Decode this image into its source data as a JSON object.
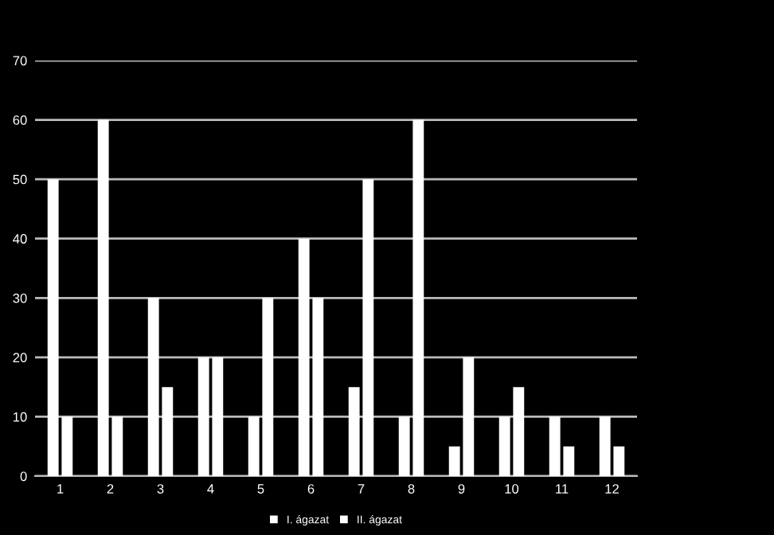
{
  "chart_data": {
    "type": "bar",
    "categories": [
      "1",
      "2",
      "3",
      "4",
      "5",
      "6",
      "7",
      "8",
      "9",
      "10",
      "11",
      "12"
    ],
    "series": [
      {
        "name": "I. ágazat",
        "color": "#ffffff",
        "values": [
          50,
          60,
          30,
          20,
          10,
          40,
          15,
          10,
          5,
          10,
          10,
          10
        ]
      },
      {
        "name": "II. ágazat",
        "color": "#ffffff",
        "values": [
          10,
          10,
          15,
          20,
          30,
          30,
          50,
          60,
          20,
          15,
          5,
          5
        ]
      }
    ],
    "ylim": [
      0,
      70
    ],
    "yticks": [
      0,
      10,
      20,
      30,
      40,
      50,
      60,
      70
    ],
    "grid": "y",
    "legend": "bottom"
  }
}
